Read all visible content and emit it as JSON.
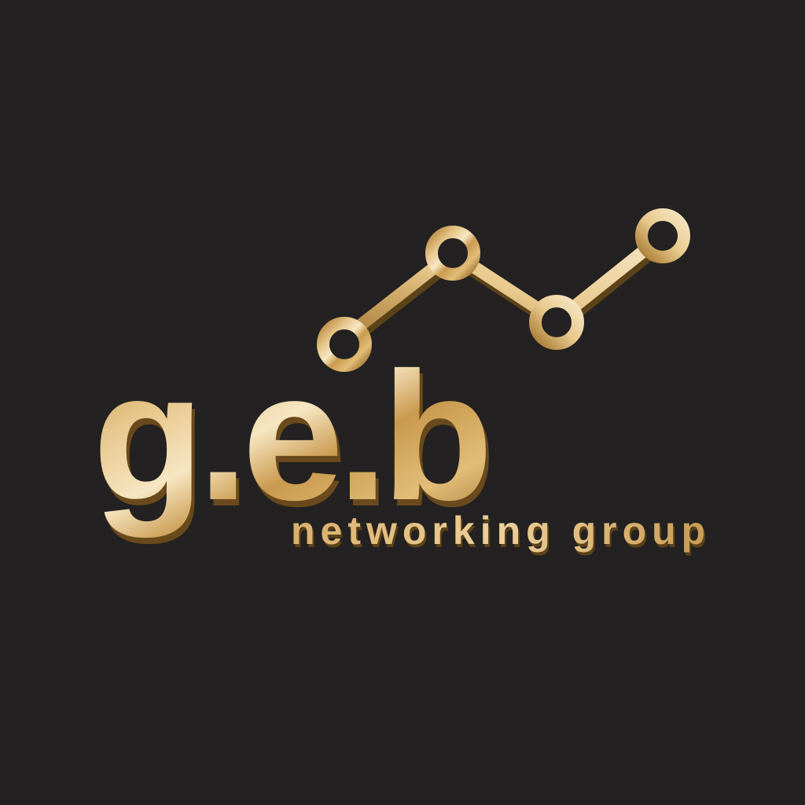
{
  "logo": {
    "wordmark": "g.e.b",
    "tagline": "networking group",
    "icon": "rising-line-chart-icon",
    "colors": {
      "background": "#232121",
      "gold_light": "#f6e2b8",
      "gold_mid": "#d7ad62",
      "gold_dark": "#8f6524"
    }
  }
}
